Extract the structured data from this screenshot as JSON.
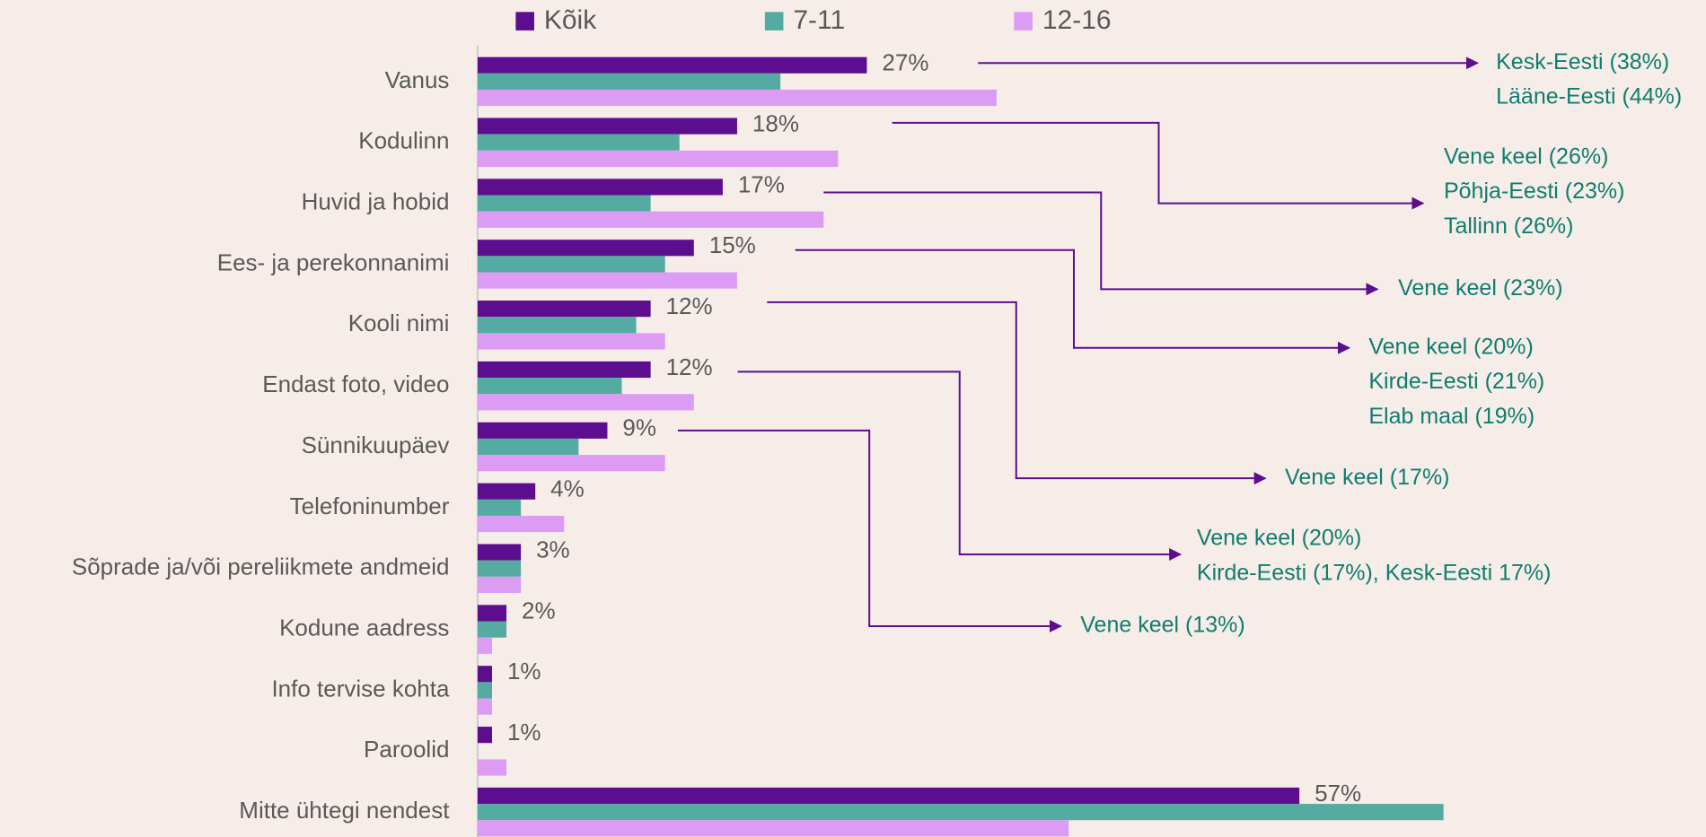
{
  "chart_data": {
    "type": "bar",
    "orientation": "horizontal",
    "categories": [
      "Vanus",
      "Kodulinn",
      "Huvid ja hobid",
      "Ees- ja perekonnanimi",
      "Kooli nimi",
      "Endast foto, video",
      "Sünnikuupäev",
      "Telefoninumber",
      "Sõprade ja/või pereliikmete andmeid",
      "Kodune aadress",
      "Info tervise kohta",
      "Paroolid",
      "Mitte ühtegi nendest"
    ],
    "series": [
      {
        "name": "Kõik",
        "color": "#5c0e8e",
        "values": [
          27,
          18,
          17,
          15,
          12,
          12,
          9,
          4,
          3,
          2,
          1,
          1,
          57
        ],
        "value_labels": [
          "27%",
          "18%",
          "17%",
          "15%",
          "12%",
          "12%",
          "9%",
          "4%",
          "3%",
          "2%",
          "1%",
          "1%",
          "57%"
        ]
      },
      {
        "name": "7-11",
        "color": "#55aba1",
        "values": [
          21,
          14,
          12,
          13,
          11,
          10,
          7,
          3,
          3,
          2,
          1,
          0,
          67
        ]
      },
      {
        "name": "12-16",
        "color": "#dc9cf4",
        "values": [
          36,
          25,
          24,
          18,
          13,
          15,
          13,
          6,
          3,
          1,
          1,
          2,
          41
        ]
      }
    ],
    "legend": "top",
    "annotations": [
      {
        "lines": [
          "Kesk-Eesti (38%)",
          "Lääne-Eesti (44%)"
        ]
      },
      {
        "lines": [
          "Vene keel (26%)",
          "Põhja-Eesti (23%)",
          "Tallinn (26%)"
        ]
      },
      {
        "lines": [
          "Vene keel (23%)"
        ]
      },
      {
        "lines": [
          "Vene keel (20%)",
          "Kirde-Eesti (21%)",
          "Elab maal (19%)"
        ]
      },
      {
        "lines": [
          "Vene keel (17%)"
        ]
      },
      {
        "lines": [
          "Vene keel (20%)",
          "Kirde-Eesti (17%), Kesk-Eesti 17%)"
        ]
      },
      {
        "lines": [
          "Vene keel (13%)"
        ]
      }
    ]
  }
}
